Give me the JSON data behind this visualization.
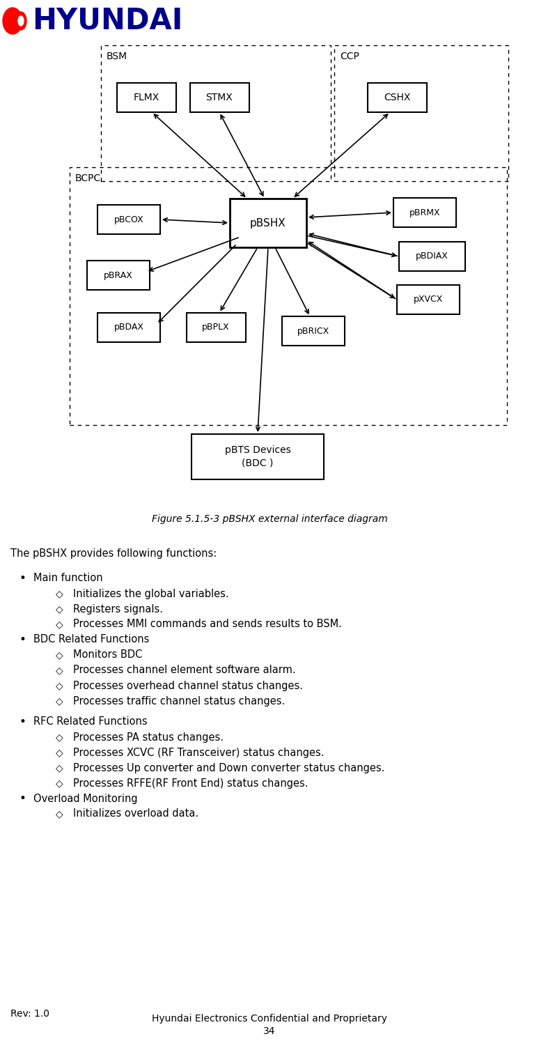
{
  "page_width": 7.74,
  "page_height": 14.94,
  "bg_color": "#ffffff",
  "diagram_title": "Figure 5.1.5-3 pBSHX external interface diagram",
  "intro_text": "The pBSHX provides following functions:",
  "bullet_sections": [
    {
      "bullet": "Main function",
      "items": [
        "Initializes the global variables.",
        "Registers signals.",
        "Processes MMI commands and sends results to BSM."
      ],
      "extra_space_after": false
    },
    {
      "bullet": "BDC Related Functions",
      "items": [
        "Monitors BDC",
        "Processes channel element software alarm.",
        "Processes overhead channel status changes.",
        "Processes traffic channel status changes."
      ],
      "extra_space_after": true
    },
    {
      "bullet": "RFC Related Functions",
      "items": [
        "Processes PA status changes.",
        "Processes XCVC (RF Transceiver) status changes.",
        "Processes Up converter and Down converter status changes.",
        "Processes RFFE(RF Front End) status changes."
      ],
      "extra_space_after": false
    },
    {
      "bullet": "Overload Monitoring",
      "items": [
        "Initializes overload data."
      ],
      "extra_space_after": false
    }
  ],
  "footer_left": "Rev: 1.0",
  "footer_center": "Hyundai Electronics Confidential and Proprietary",
  "footer_page": "34"
}
